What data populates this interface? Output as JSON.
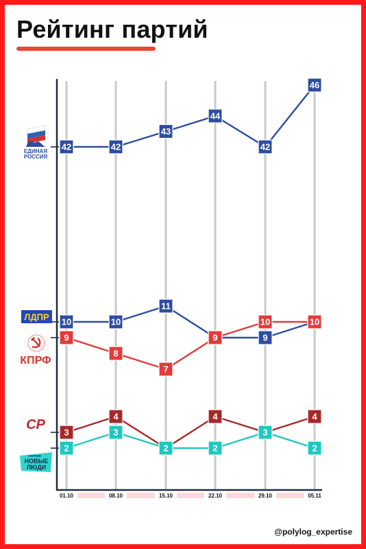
{
  "title": "Рейтинг партий",
  "handle": "@polylog_expertise",
  "logos": {
    "er": {
      "line1": "ЕДИНАЯ",
      "line2": "РОССИЯ",
      "icon": "bear-flag-icon"
    },
    "ldpr": {
      "text": "ЛДПР"
    },
    "kprf": {
      "text": "КПРФ",
      "icon": "hammer-sickle-icon"
    },
    "sr": {
      "text": "СР"
    },
    "nl": {
      "small": "ПАРТИЯ",
      "line1": "НОВЫЕ",
      "line2": "ЛЮДИ"
    }
  },
  "chart_data": {
    "type": "line",
    "x": [
      "01.10",
      "08.10",
      "15.10",
      "22.10",
      "29.10",
      "05.11"
    ],
    "series": [
      {
        "key": "er",
        "values": [
          42,
          42,
          43,
          44,
          42,
          46
        ],
        "color": "#2d4d9f"
      },
      {
        "key": "ldpr",
        "values": [
          10,
          10,
          11,
          9,
          9,
          10
        ],
        "color": "#2d4d9f"
      },
      {
        "key": "kprf",
        "values": [
          9,
          8,
          7,
          9,
          10,
          10
        ],
        "color": "#e23b3b"
      },
      {
        "key": "sr",
        "values": [
          3,
          4,
          2,
          4,
          3,
          4
        ],
        "color": "#a82828"
      },
      {
        "key": "nl",
        "values": [
          2,
          3,
          2,
          2,
          3,
          2
        ],
        "color": "#1fc8c1"
      }
    ],
    "xlabel": "",
    "ylabel": ""
  }
}
